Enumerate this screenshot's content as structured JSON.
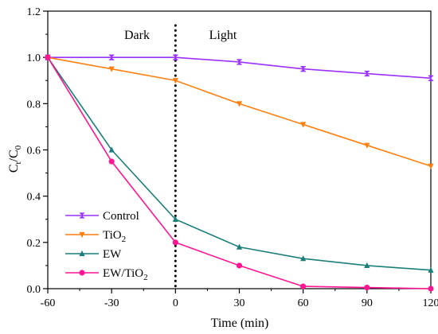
{
  "chart_data": {
    "type": "line",
    "xlabel": "Time (min)",
    "ylabel": {
      "main": "C",
      "sub1": "t",
      "sep": "/C",
      "sub2": "0"
    },
    "xlim": [
      -60,
      120
    ],
    "ylim": [
      0,
      1.2
    ],
    "x_ticks": [
      -60,
      -30,
      0,
      30,
      60,
      90,
      120
    ],
    "x_tick_labels": [
      "-60",
      "-30",
      "0",
      "30",
      "60",
      "90",
      "120"
    ],
    "y_ticks": [
      0.0,
      0.2,
      0.4,
      0.6,
      0.8,
      1.0,
      1.2
    ],
    "y_tick_labels": [
      "0.0",
      "0.2",
      "0.4",
      "0.6",
      "0.8",
      "1.0",
      "1.2"
    ],
    "grid": false,
    "legend_position": "bottom-left",
    "annotations": {
      "dark": "Dark",
      "light": "Light",
      "divider_x": 0
    },
    "x": [
      -60,
      -30,
      0,
      30,
      60,
      90,
      120
    ],
    "series": [
      {
        "name": "Control",
        "label_main": "Control",
        "label_sub": "",
        "color": "#9b30ff",
        "marker": "bowtie",
        "values": [
          1.0,
          1.0,
          1.0,
          0.98,
          0.95,
          0.93,
          0.91
        ],
        "errors": [
          0.01,
          0.01,
          0.01,
          0.01,
          0.01,
          0.01,
          0.01
        ]
      },
      {
        "name": "TiO2",
        "label_main": "TiO",
        "label_sub": "2",
        "color": "#ff7f0e",
        "marker": "triangle-down",
        "values": [
          1.0,
          0.95,
          0.9,
          0.8,
          0.71,
          0.62,
          0.53
        ]
      },
      {
        "name": "EW",
        "label_main": "EW",
        "label_sub": "",
        "color": "#1a7f7a",
        "marker": "triangle-up",
        "values": [
          1.0,
          0.6,
          0.3,
          0.18,
          0.13,
          0.1,
          0.08
        ]
      },
      {
        "name": "EW/TiO2",
        "label_main": "EW/TiO",
        "label_sub": "2",
        "color": "#ff1493",
        "marker": "circle",
        "values": [
          1.0,
          0.55,
          0.2,
          0.1,
          0.01,
          0.005,
          0.0
        ]
      }
    ]
  }
}
